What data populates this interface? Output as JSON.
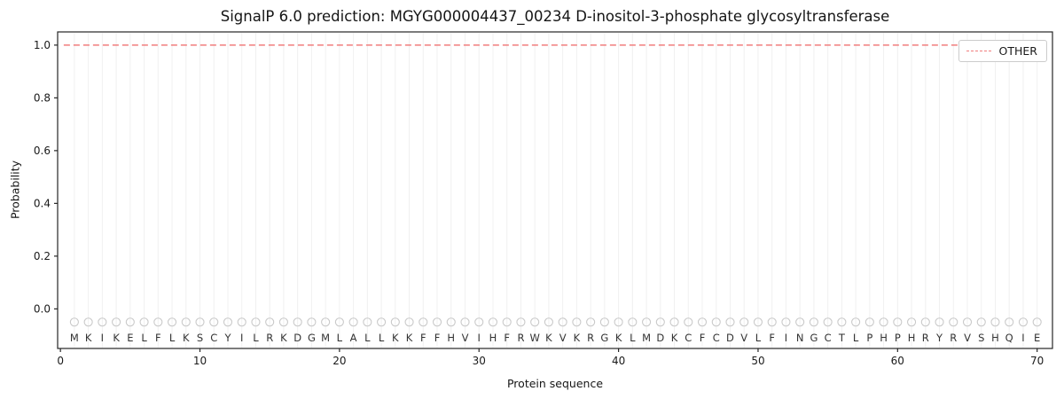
{
  "chart_data": {
    "type": "line",
    "title": "SignalP 6.0 prediction: MGYG000004437_00234 D-inositol-3-phosphate glycosyltransferase",
    "xlabel": "Protein sequence",
    "ylabel": "Probability",
    "xlim": [
      -0.2,
      71.1
    ],
    "ylim": [
      -0.15,
      1.05
    ],
    "xtick_values": [
      0,
      10,
      20,
      30,
      40,
      50,
      60,
      70
    ],
    "xtick_labels": [
      "0",
      "10",
      "20",
      "30",
      "40",
      "50",
      "60",
      "70"
    ],
    "ytick_values": [
      0.0,
      0.2,
      0.4,
      0.6,
      0.8,
      1.0
    ],
    "ytick_labels": [
      "0.0",
      "0.2",
      "0.4",
      "0.6",
      "0.8",
      "1.0"
    ],
    "grid": false,
    "axes": {
      "spine_color": "#262626",
      "text_color": "#1a1a1a",
      "grid_color": "#f0f0f0",
      "background": "#ffffff"
    },
    "legend": {
      "position": "upper right",
      "entries": [
        {
          "label": "OTHER",
          "color": "#f07d7d",
          "linestyle": "dashed"
        }
      ]
    },
    "series": [
      {
        "name": "OTHER",
        "color": "#f07d7d",
        "linestyle": "dashed",
        "x_range": [
          1,
          70
        ],
        "y_value": 1.0
      }
    ],
    "sequence": {
      "start_position": 1,
      "marker": "o",
      "marker_y": -0.05,
      "marker_color": "#c9c9c9",
      "letter_y": -0.11,
      "letter_color": "#333333",
      "letters": [
        "M",
        "K",
        "I",
        "K",
        "E",
        "L",
        "F",
        "L",
        "K",
        "S",
        "C",
        "Y",
        "I",
        "L",
        "R",
        "K",
        "D",
        "G",
        "M",
        "L",
        "A",
        "L",
        "L",
        "K",
        "K",
        "F",
        "F",
        "H",
        "V",
        "I",
        "H",
        "F",
        "R",
        "W",
        "K",
        "V",
        "K",
        "R",
        "G",
        "K",
        "L",
        "M",
        "D",
        "K",
        "C",
        "F",
        "C",
        "D",
        "V",
        "L",
        "F",
        "I",
        "N",
        "G",
        "C",
        "T",
        "L",
        "P",
        "H",
        "P",
        "H",
        "R",
        "Y",
        "R",
        "V",
        "S",
        "H",
        "Q",
        "I",
        "E"
      ]
    }
  }
}
